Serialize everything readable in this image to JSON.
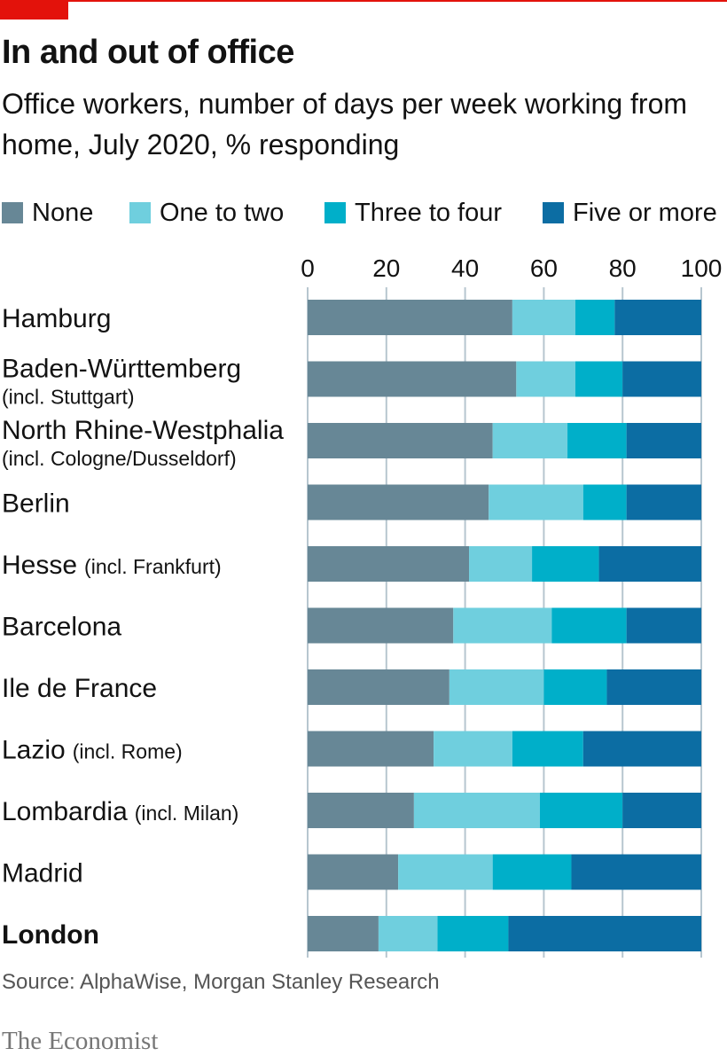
{
  "header": {
    "title": "In and out of office",
    "subtitle": "Office workers, number of days per week working from home, July 2020, % responding"
  },
  "legend": [
    {
      "label": "None",
      "color": "#678796"
    },
    {
      "label": "One to two",
      "color": "#6fcfde"
    },
    {
      "label": "Three to four",
      "color": "#00afc9"
    },
    {
      "label": "Five or more",
      "color": "#0c6da3"
    }
  ],
  "chart_data": {
    "type": "bar",
    "orientation": "horizontal",
    "stacked": true,
    "xlim": [
      0,
      100
    ],
    "xticks": [
      0,
      20,
      40,
      60,
      80,
      100
    ],
    "grid": true,
    "categories": [
      {
        "name": "Hamburg",
        "note": ""
      },
      {
        "name": "Baden-Württemberg",
        "note": "(incl. Stuttgart)"
      },
      {
        "name": "North Rhine-Westphalia",
        "note": "(incl. Cologne/Dusseldorf)"
      },
      {
        "name": "Berlin",
        "note": ""
      },
      {
        "name": "Hesse",
        "note": "(incl. Frankfurt)"
      },
      {
        "name": "Barcelona",
        "note": ""
      },
      {
        "name": "Ile de France",
        "note": ""
      },
      {
        "name": "Lazio",
        "note": "(incl. Rome)"
      },
      {
        "name": "Lombardia",
        "note": "(incl. Milan)"
      },
      {
        "name": "Madrid",
        "note": ""
      },
      {
        "name": "London",
        "note": ""
      }
    ],
    "highlight": "London",
    "series": [
      {
        "name": "None",
        "color": "#678796",
        "values": [
          52,
          53,
          47,
          46,
          41,
          37,
          36,
          32,
          27,
          23,
          18
        ]
      },
      {
        "name": "One to two",
        "color": "#6fcfde",
        "values": [
          16,
          15,
          19,
          24,
          16,
          25,
          24,
          20,
          32,
          24,
          15
        ]
      },
      {
        "name": "Three to four",
        "color": "#00afc9",
        "values": [
          10,
          12,
          15,
          11,
          17,
          19,
          16,
          18,
          21,
          20,
          18
        ]
      },
      {
        "name": "Five or more",
        "color": "#0c6da3",
        "values": [
          22,
          20,
          19,
          19,
          26,
          19,
          24,
          30,
          20,
          33,
          49
        ]
      }
    ]
  },
  "footer": {
    "source": "Source: AlphaWise, Morgan Stanley Research",
    "brand": "The Economist"
  }
}
